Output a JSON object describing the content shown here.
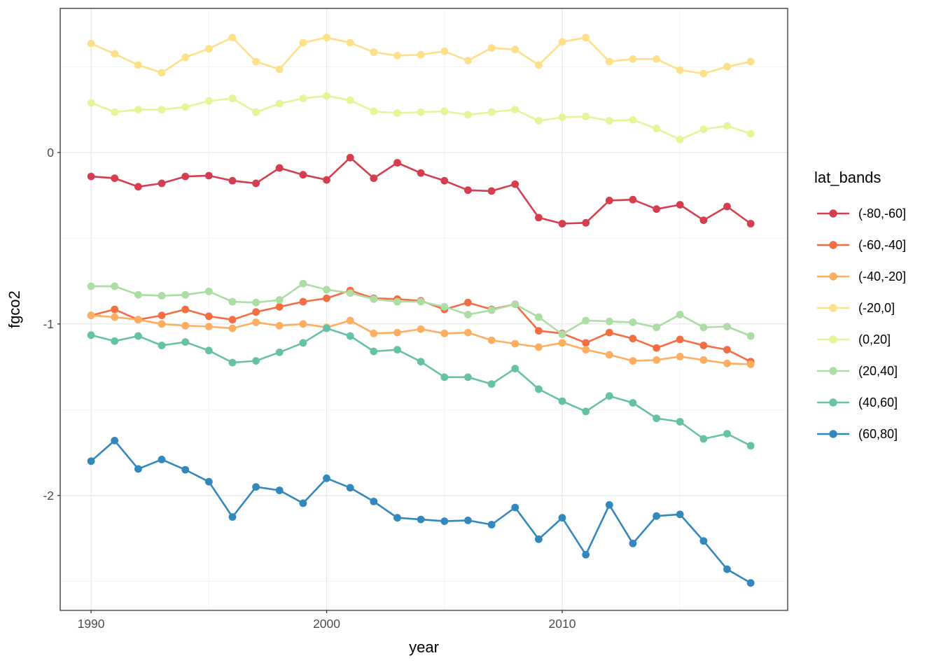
{
  "figure": {
    "background": "#ffffff",
    "panel_border_color": "#333333",
    "grid_major_color": "#e6e6e6",
    "grid_minor_color": "#f2f2f2",
    "tick_color": "#333333",
    "tick_label_color": "#4d4d4d",
    "axis_title_color": "#000000",
    "legend_text_color": "#000000"
  },
  "chart_data": {
    "type": "line",
    "title": "",
    "xlabel": "year",
    "ylabel": "fgco2",
    "legend_title": "lat_bands",
    "legend_position": "right",
    "grid": true,
    "xlim": [
      1988.69,
      2019.57
    ],
    "ylim": [
      -2.67,
      0.84
    ],
    "x_ticks": [
      1990,
      2000,
      2010
    ],
    "x_minor_ticks": [
      1995,
      2005,
      2015
    ],
    "y_ticks": [
      0,
      -1,
      -2
    ],
    "y_tick_labels": [
      "0",
      "-1",
      "-2"
    ],
    "y_minor_ticks": [
      0.5,
      -0.5,
      -1.5,
      -2.5
    ],
    "x": [
      1990,
      1991,
      1992,
      1993,
      1994,
      1995,
      1996,
      1997,
      1998,
      1999,
      2000,
      2001,
      2002,
      2003,
      2004,
      2005,
      2006,
      2007,
      2008,
      2009,
      2010,
      2011,
      2012,
      2013,
      2014,
      2015,
      2016,
      2017,
      2018
    ],
    "series": [
      {
        "name": "(-80,-60]",
        "color": "#d53e4f",
        "values": [
          -0.14,
          -0.15,
          -0.2,
          -0.18,
          -0.14,
          -0.135,
          -0.165,
          -0.18,
          -0.09,
          -0.13,
          -0.16,
          -0.03,
          -0.15,
          -0.06,
          -0.12,
          -0.165,
          -0.22,
          -0.225,
          -0.185,
          -0.38,
          -0.415,
          -0.41,
          -0.28,
          -0.275,
          -0.33,
          -0.305,
          -0.395,
          -0.315,
          -0.415
        ]
      },
      {
        "name": "(-60,-40]",
        "color": "#f46d43",
        "values": [
          -0.95,
          -0.915,
          -0.975,
          -0.95,
          -0.915,
          -0.955,
          -0.975,
          -0.93,
          -0.9,
          -0.87,
          -0.85,
          -0.805,
          -0.85,
          -0.855,
          -0.865,
          -0.915,
          -0.875,
          -0.915,
          -0.885,
          -1.04,
          -1.055,
          -1.11,
          -1.05,
          -1.085,
          -1.14,
          -1.09,
          -1.125,
          -1.15,
          -1.22
        ]
      },
      {
        "name": "(-40,-20]",
        "color": "#fdae61",
        "values": [
          -0.95,
          -0.96,
          -0.975,
          -1.0,
          -1.01,
          -1.015,
          -1.025,
          -0.99,
          -1.01,
          -1.0,
          -1.02,
          -0.98,
          -1.055,
          -1.05,
          -1.03,
          -1.055,
          -1.05,
          -1.095,
          -1.115,
          -1.135,
          -1.11,
          -1.15,
          -1.18,
          -1.215,
          -1.21,
          -1.19,
          -1.21,
          -1.23,
          -1.235
        ]
      },
      {
        "name": "(-20,0]",
        "color": "#fee08b",
        "values": [
          0.635,
          0.575,
          0.51,
          0.465,
          0.555,
          0.605,
          0.67,
          0.53,
          0.485,
          0.64,
          0.67,
          0.64,
          0.585,
          0.565,
          0.57,
          0.59,
          0.535,
          0.61,
          0.6,
          0.51,
          0.645,
          0.67,
          0.53,
          0.545,
          0.545,
          0.48,
          0.46,
          0.5,
          0.53
        ]
      },
      {
        "name": "(0,20]",
        "color": "#e6f598",
        "values": [
          0.29,
          0.235,
          0.25,
          0.25,
          0.265,
          0.3,
          0.315,
          0.235,
          0.285,
          0.315,
          0.33,
          0.305,
          0.24,
          0.23,
          0.235,
          0.24,
          0.22,
          0.235,
          0.25,
          0.185,
          0.205,
          0.21,
          0.185,
          0.19,
          0.14,
          0.075,
          0.135,
          0.155,
          0.11
        ]
      },
      {
        "name": "(20,40]",
        "color": "#abdda4",
        "values": [
          -0.78,
          -0.78,
          -0.83,
          -0.835,
          -0.83,
          -0.81,
          -0.87,
          -0.875,
          -0.86,
          -0.765,
          -0.8,
          -0.82,
          -0.855,
          -0.87,
          -0.87,
          -0.9,
          -0.945,
          -0.92,
          -0.885,
          -0.96,
          -1.06,
          -0.98,
          -0.985,
          -0.99,
          -1.02,
          -0.945,
          -1.02,
          -1.015,
          -1.07
        ]
      },
      {
        "name": "(40,60]",
        "color": "#66c2a5",
        "values": [
          -1.065,
          -1.1,
          -1.07,
          -1.125,
          -1.105,
          -1.155,
          -1.225,
          -1.215,
          -1.165,
          -1.11,
          -1.025,
          -1.07,
          -1.16,
          -1.15,
          -1.22,
          -1.31,
          -1.31,
          -1.35,
          -1.26,
          -1.38,
          -1.45,
          -1.51,
          -1.42,
          -1.46,
          -1.55,
          -1.57,
          -1.67,
          -1.64,
          -1.71
        ]
      },
      {
        "name": "(60,80]",
        "color": "#3288bd",
        "values": [
          -1.8,
          -1.68,
          -1.845,
          -1.79,
          -1.85,
          -1.92,
          -2.125,
          -1.95,
          -1.97,
          -2.045,
          -1.9,
          -1.955,
          -2.035,
          -2.13,
          -2.14,
          -2.15,
          -2.145,
          -2.17,
          -2.07,
          -2.255,
          -2.13,
          -2.345,
          -2.055,
          -2.28,
          -2.12,
          -2.11,
          -2.265,
          -2.43,
          -2.51
        ]
      }
    ]
  }
}
